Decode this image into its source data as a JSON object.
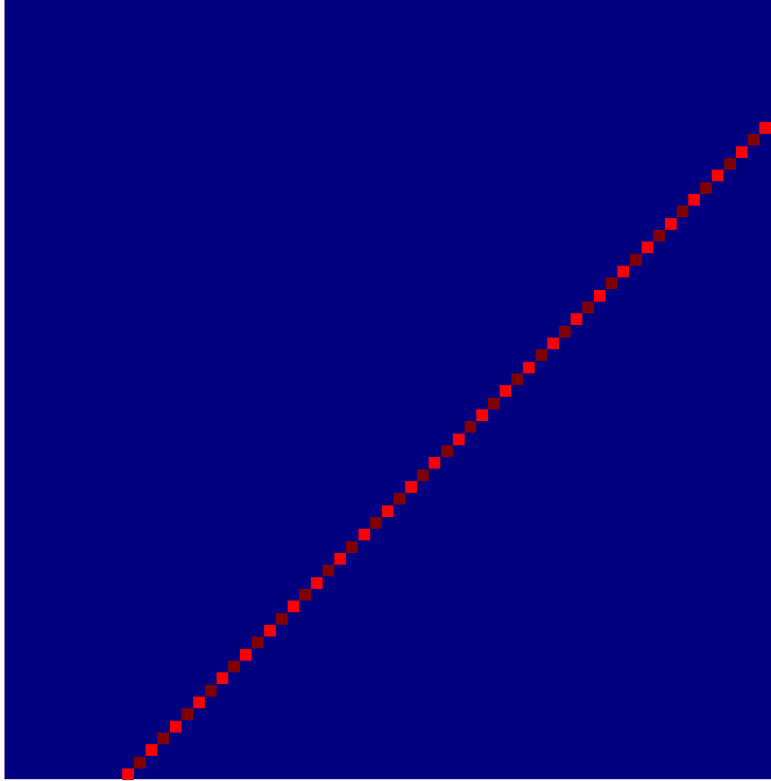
{
  "board": {
    "background": "#000080",
    "snake_colors": [
      "#ff0000",
      "#800000"
    ]
  }
}
